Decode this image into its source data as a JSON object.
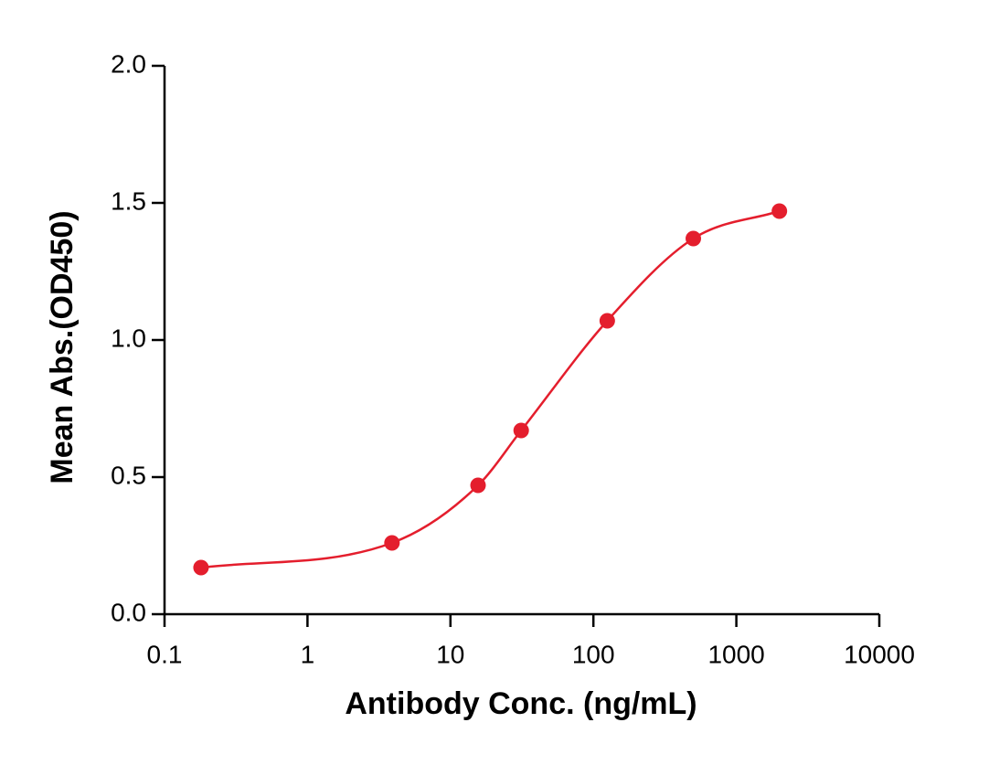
{
  "chart_data": {
    "type": "scatter",
    "xlabel": "Antibody Conc. (ng/mL)",
    "ylabel": "Mean Abs.(OD450)",
    "x": [
      0.18,
      3.9,
      15.6,
      31.25,
      125,
      500,
      2000
    ],
    "values": [
      0.17,
      0.26,
      0.47,
      0.67,
      1.07,
      1.37,
      1.47
    ],
    "color": "#e41e2d",
    "xlog": true,
    "curve": true,
    "xlim": [
      0.1,
      10000
    ],
    "xticks": [
      0.1,
      1,
      10,
      100,
      1000,
      10000
    ],
    "ylim": [
      0,
      2
    ],
    "yticks": [
      {
        "value": 0,
        "label": "0.0"
      },
      0.5,
      {
        "value": 1,
        "label": "1.0"
      },
      1.5,
      {
        "value": 2,
        "label": "2.0"
      }
    ]
  }
}
